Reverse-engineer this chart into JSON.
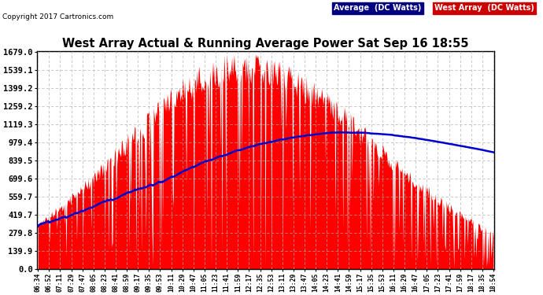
{
  "title": "West Array Actual & Running Average Power Sat Sep 16 18:55",
  "copyright": "Copyright 2017 Cartronics.com",
  "legend_avg": "Average  (DC Watts)",
  "legend_west": "West Array  (DC Watts)",
  "yticks": [
    0.0,
    139.9,
    279.8,
    419.7,
    559.7,
    699.6,
    839.5,
    979.4,
    1119.3,
    1259.2,
    1399.2,
    1539.1,
    1679.0
  ],
  "ymax": 1679.0,
  "ymin": 0.0,
  "bg_color": "#ffffff",
  "plot_bg_color": "#ffffff",
  "grid_color": "#b0b0b0",
  "title_color": "#000000",
  "red_color": "#ff0000",
  "blue_color": "#0000cc",
  "avg_legend_bg": "#000080",
  "west_legend_bg": "#cc0000",
  "n_points": 600,
  "time_labels": [
    "06:34",
    "06:52",
    "07:11",
    "07:29",
    "07:47",
    "08:05",
    "08:23",
    "08:41",
    "08:59",
    "09:17",
    "09:35",
    "09:53",
    "10:11",
    "10:29",
    "10:47",
    "11:05",
    "11:23",
    "11:41",
    "11:59",
    "12:17",
    "12:35",
    "12:53",
    "13:11",
    "13:29",
    "13:47",
    "14:05",
    "14:23",
    "14:41",
    "14:59",
    "15:17",
    "15:35",
    "15:53",
    "16:11",
    "16:29",
    "16:47",
    "17:05",
    "17:23",
    "17:41",
    "17:59",
    "18:17",
    "18:35",
    "18:54"
  ]
}
